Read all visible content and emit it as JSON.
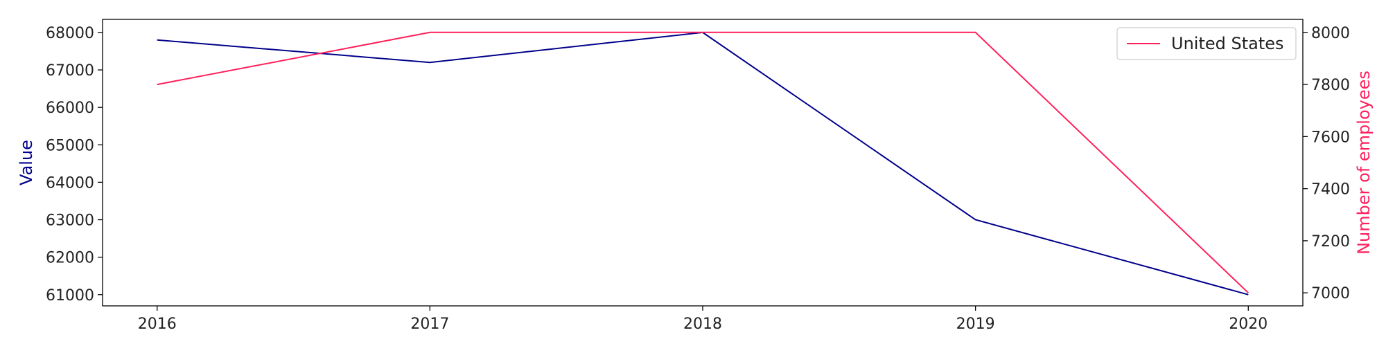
{
  "chart_data": {
    "type": "line",
    "x": [
      2016,
      2017,
      2018,
      2019,
      2020
    ],
    "xticks": [
      "2016",
      "2017",
      "2018",
      "2019",
      "2020"
    ],
    "series": [
      {
        "name": "",
        "axis": "left",
        "color": "#00008b",
        "values": [
          67800,
          67200,
          68000,
          63000,
          61000
        ]
      },
      {
        "name": "United States",
        "axis": "right",
        "color": "#ff1f5b",
        "values": [
          7800,
          8000,
          8000,
          8000,
          7000
        ]
      }
    ],
    "ylabel_left": "Value",
    "ylabel_right": "Number of employees",
    "ylim_left": [
      60700,
      68350
    ],
    "ylim_right": [
      6950,
      8050
    ],
    "yticks_left": [
      "61000",
      "62000",
      "63000",
      "64000",
      "65000",
      "66000",
      "67000",
      "68000"
    ],
    "yticks_right": [
      "7000",
      "7200",
      "7400",
      "7600",
      "7800",
      "8000"
    ],
    "legend": {
      "entries": [
        "United States"
      ],
      "placement": "top-right"
    },
    "left_axis_color": "#00008b",
    "right_axis_color": "#ff1f5b",
    "grid": false
  }
}
